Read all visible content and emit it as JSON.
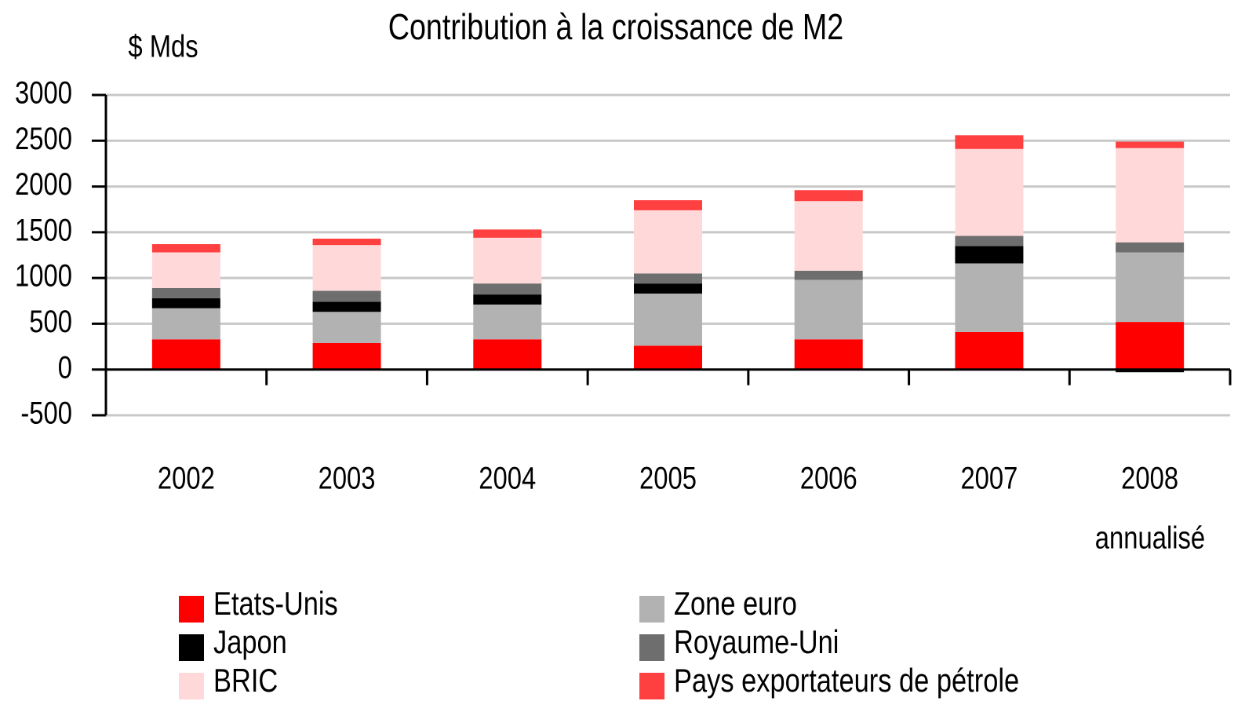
{
  "chart_data": {
    "type": "stacked_bar",
    "title": "Contribution à la croissance de M2",
    "y_label": "$ Mds",
    "categories": [
      "2002",
      "2003",
      "2004",
      "2005",
      "2006",
      "2007",
      "2008"
    ],
    "x_annotation": "annualisé",
    "series": [
      {
        "name": "Etats-Unis",
        "color": "#ff0000",
        "values": [
          330,
          290,
          330,
          260,
          330,
          410,
          520
        ]
      },
      {
        "name": "Zone euro",
        "color": "#b2b2b2",
        "values": [
          340,
          340,
          380,
          570,
          650,
          750,
          760
        ]
      },
      {
        "name": "Japon",
        "color": "#000000",
        "values": [
          110,
          110,
          110,
          110,
          0,
          190,
          -30
        ]
      },
      {
        "name": "Royaume-Uni",
        "color": "#6e6e6e",
        "values": [
          110,
          120,
          120,
          110,
          100,
          110,
          110
        ]
      },
      {
        "name": "BRIC",
        "color": "#ffd9d9",
        "values": [
          390,
          500,
          500,
          690,
          760,
          950,
          1030
        ]
      },
      {
        "name": "Pays exportateurs de pétrole",
        "color": "#ff4040",
        "values": [
          90,
          70,
          90,
          110,
          120,
          150,
          70
        ]
      }
    ],
    "ylim": [
      -500,
      3000
    ],
    "yticks": [
      -500,
      0,
      500,
      1000,
      1500,
      2000,
      2500,
      3000
    ],
    "grid": true
  }
}
